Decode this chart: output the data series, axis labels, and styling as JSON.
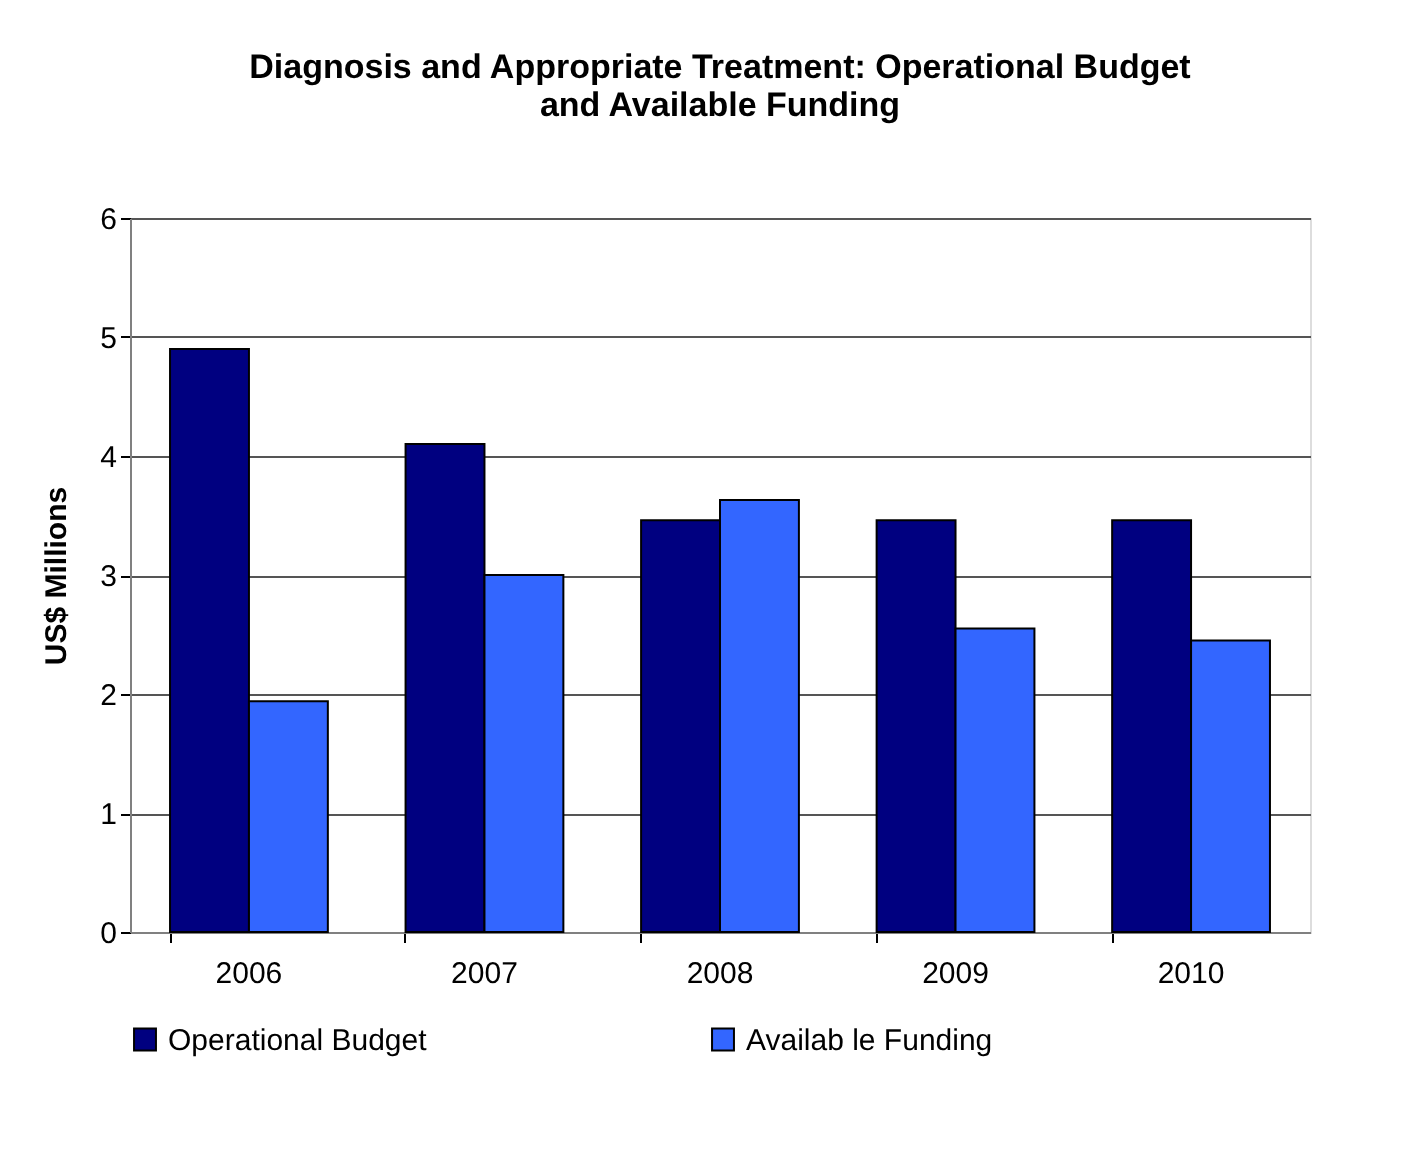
{
  "chart_data": {
    "type": "bar",
    "title": "Diagnosis and Appropriate Treatment: Operational Budget and Available Funding",
    "ylabel": "US$ Millions",
    "categories": [
      "2006",
      "2007",
      "2008",
      "2009",
      "2010"
    ],
    "series": [
      {
        "name": "Operational Budget",
        "color": "#000080",
        "values": [
          4.9,
          4.1,
          3.46,
          3.46,
          3.46
        ]
      },
      {
        "name": "Availab le Funding",
        "color": "#3366ff",
        "values": [
          1.94,
          3.0,
          3.63,
          2.55,
          2.45
        ]
      }
    ],
    "ylim": [
      0,
      6
    ],
    "yticks": [
      0,
      1,
      2,
      3,
      4,
      5,
      6
    ],
    "grid": "y",
    "legend": "bottom"
  }
}
